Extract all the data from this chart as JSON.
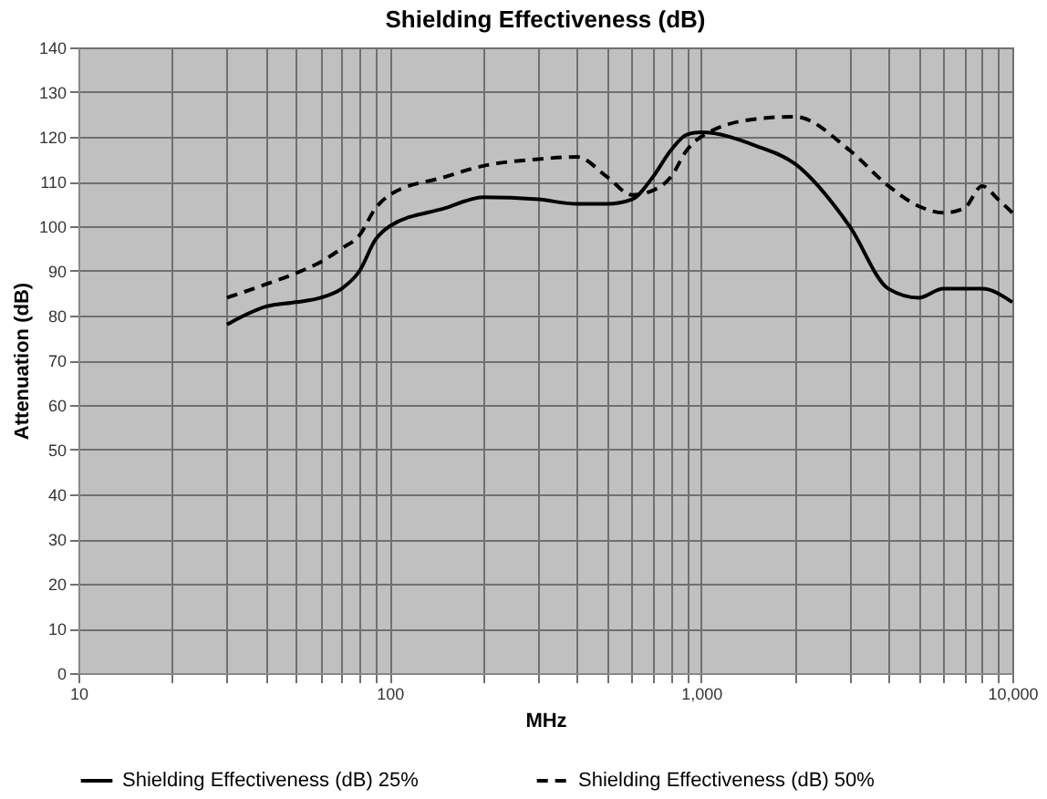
{
  "chart_data": {
    "type": "line",
    "title": "Shielding Effectiveness (dB)",
    "xlabel": "MHz",
    "ylabel": "Attenuation (dB)",
    "log": "x",
    "xlim": [
      10,
      10000
    ],
    "ylim": [
      0,
      140
    ],
    "xticks": [
      10,
      {
        "value": 20,
        "label": null
      },
      {
        "value": 30,
        "label": null
      },
      {
        "value": 40,
        "label": null
      },
      {
        "value": 50,
        "label": null
      },
      {
        "value": 60,
        "label": null
      },
      {
        "value": 70,
        "label": null
      },
      {
        "value": 80,
        "label": null
      },
      {
        "value": 90,
        "label": null
      },
      100,
      {
        "value": 200,
        "label": null
      },
      {
        "value": 300,
        "label": null
      },
      {
        "value": 400,
        "label": null
      },
      {
        "value": 500,
        "label": null
      },
      {
        "value": 600,
        "label": null
      },
      {
        "value": 700,
        "label": null
      },
      {
        "value": 800,
        "label": null
      },
      {
        "value": 900,
        "label": null
      },
      {
        "value": 1000,
        "label": "1,000"
      },
      {
        "value": 2000,
        "label": null
      },
      {
        "value": 3000,
        "label": null
      },
      {
        "value": 4000,
        "label": null
      },
      {
        "value": 5000,
        "label": null
      },
      {
        "value": 6000,
        "label": null
      },
      {
        "value": 7000,
        "label": null
      },
      {
        "value": 8000,
        "label": null
      },
      {
        "value": 9000,
        "label": null
      },
      {
        "value": 10000,
        "label": "10,000"
      }
    ],
    "yticks": [
      0,
      10,
      20,
      30,
      40,
      50,
      60,
      70,
      80,
      90,
      100,
      110,
      120,
      130,
      140
    ],
    "grid": true,
    "legend": "bottom",
    "marker": "none",
    "series": [
      {
        "name": "Shielding Effectiveness (dB) 25%",
        "color": "#000000",
        "line_style": "solid",
        "x": [
          30,
          40,
          50,
          60,
          70,
          80,
          90,
          100,
          150,
          200,
          300,
          400,
          500,
          600,
          700,
          800,
          900,
          1000,
          1500,
          2000,
          3000,
          4000,
          5000,
          6000,
          7000,
          8000,
          10000
        ],
        "values": [
          78,
          82,
          83,
          84,
          86,
          90,
          97,
          100,
          104,
          106.5,
          106,
          105,
          105,
          106,
          111,
          117,
          120.5,
          121,
          118,
          114,
          100,
          86,
          84,
          86,
          86,
          86,
          83
        ]
      },
      {
        "name": "Shielding Effectiveness (dB) 50%",
        "color": "#000000",
        "line_style": "dashed",
        "x": [
          30,
          40,
          50,
          60,
          70,
          80,
          90,
          100,
          150,
          200,
          300,
          400,
          500,
          600,
          700,
          800,
          900,
          1000,
          1500,
          2000,
          3000,
          4000,
          5000,
          6000,
          7000,
          8000,
          9000,
          10000
        ],
        "values": [
          84,
          87,
          89.5,
          92,
          95,
          98,
          104,
          107,
          111,
          113.5,
          115,
          115.5,
          111,
          107,
          108,
          111,
          117,
          120,
          124,
          124.5,
          117,
          109,
          104.5,
          103,
          104,
          109,
          106,
          103
        ]
      }
    ]
  }
}
